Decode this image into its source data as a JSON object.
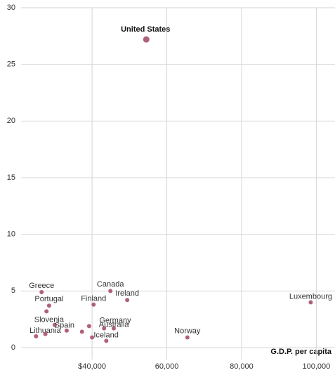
{
  "chart_data": {
    "type": "scatter",
    "x_label": "G.D.P. per capita",
    "labels": [
      "United States",
      "Luxembourg",
      "Norway",
      "Greece",
      "Canada",
      "Ireland",
      "Portugal",
      "Finland",
      null,
      "Slovenia",
      "Spain",
      null,
      null,
      "Germany",
      "Australia",
      "Iceland",
      null,
      "Lithuania",
      null
    ],
    "x": [
      54500,
      98500,
      65500,
      26500,
      44900,
      49400,
      28500,
      40400,
      27800,
      30000,
      33200,
      37300,
      39200,
      45800,
      43200,
      40000,
      43800,
      25000,
      27500
    ],
    "values": [
      27.2,
      4.0,
      0.9,
      4.9,
      5.0,
      4.2,
      3.7,
      3.8,
      3.2,
      2.0,
      1.5,
      1.4,
      1.9,
      1.7,
      1.7,
      0.9,
      0.6,
      1.0,
      1.2
    ],
    "color": "#b0607f",
    "xlim": [
      21000,
      105000
    ],
    "xticks": [
      {
        "value": 40000,
        "label": "$40,000"
      },
      {
        "value": 60000,
        "label": "60,000"
      },
      {
        "value": 80000,
        "label": "80,000"
      },
      {
        "value": 100000,
        "label": "100,000"
      }
    ],
    "ylim": [
      0,
      30
    ],
    "yticks": [
      0,
      5,
      10,
      15,
      20,
      25,
      30
    ],
    "grid": true
  }
}
